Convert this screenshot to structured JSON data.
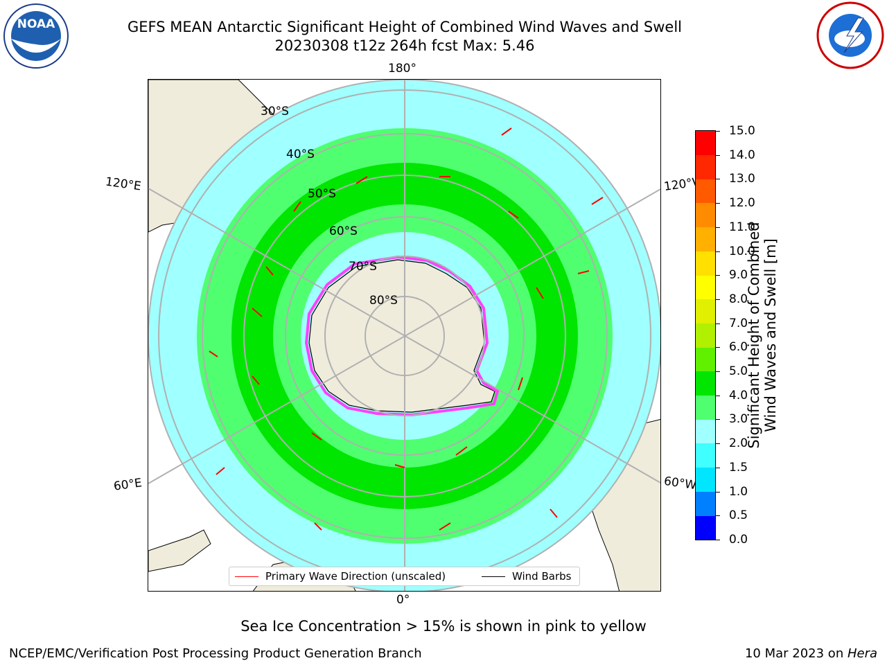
{
  "header": {
    "title_line1": "GEFS MEAN Antarctic Significant Height of Combined Wind Waves and Swell",
    "title_line2": "20230308 t12z 264h fcst   Max: 5.46"
  },
  "logos": {
    "left": "NOAA",
    "right": "NATIONAL WEATHER SERVICE"
  },
  "map": {
    "projection": "south polar stereographic",
    "longitude_labels": {
      "top": "180°",
      "bottom": "0°",
      "upper_left": "120°E",
      "upper_right": "120°W",
      "lower_left": "60°E",
      "lower_right": "60°W"
    },
    "latitude_labels": [
      "30°S",
      "40°S",
      "50°S",
      "60°S",
      "70°S",
      "80°S"
    ],
    "legend": {
      "wave_label": "Primary Wave Direction (unscaled)",
      "barb_label": "Wind Barbs",
      "wave_color": "#ff0000",
      "barb_color": "#000000"
    }
  },
  "colorbar": {
    "title_line1": "Significant Height of Combined",
    "title_line2": "Wind Waves and Swell [m]",
    "ticks": [
      "0.0",
      "0.5",
      "1.0",
      "1.5",
      "2.0",
      "3.0",
      "4.0",
      "5.0",
      "6.0",
      "7.0",
      "8.0",
      "9.0",
      "10.0",
      "11.0",
      "12.0",
      "13.0",
      "14.0",
      "15.0"
    ],
    "colors": [
      "#0000ff",
      "#0080ff",
      "#00e6ff",
      "#40ffff",
      "#a0ffff",
      "#50ff70",
      "#00e600",
      "#60f000",
      "#b0f000",
      "#e0f000",
      "#ffff00",
      "#ffe000",
      "#ffb000",
      "#ff8c00",
      "#ff5a00",
      "#ff2800",
      "#ff0000"
    ]
  },
  "footer": {
    "note": "Sea Ice Concentration > 15% is shown in pink to yellow",
    "credit": "NCEP/EMC/Verification Post Processing Product Generation Branch",
    "date": "10 Mar 2023 on ",
    "system": "Hera"
  }
}
